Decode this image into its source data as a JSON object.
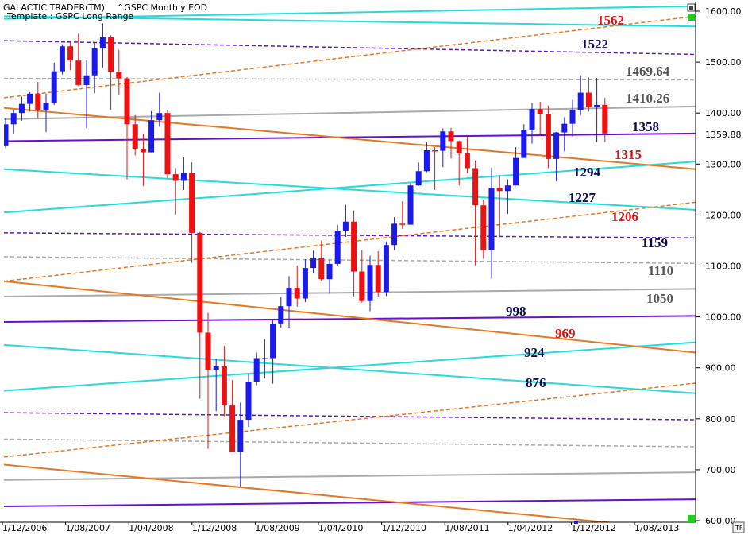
{
  "header": {
    "app_title": "GALACTIC TRADER(TM)",
    "symbol": "^GSPC Monthly EOD",
    "template": "Template : GSPC Long Range"
  },
  "colors": {
    "up_candle": "#1a1aee",
    "down_candle": "#ee1111",
    "cyan_line": "#22dddd",
    "purple_line": "#6a10cc",
    "orange_line": "#e87722",
    "gray_line": "#aaaaaa",
    "label_navy": "#0b0b55",
    "label_red": "#dd1111",
    "label_gray": "#555555",
    "green_marker": "#22cc22"
  },
  "chart_data": {
    "type": "candlestick",
    "title": "GSPC Long Range",
    "ylim": [
      600,
      1610
    ],
    "x_ticks": [
      "1/12/2006",
      "1/08/2007",
      "1/04/2008",
      "1/12/2008",
      "1/08/2009",
      "1/04/2010",
      "1/12/2010",
      "1/08/2011",
      "1/04/2012",
      "1/12/2012",
      "1/08/2013"
    ],
    "y_ticks": [
      "1600.00",
      "1500.00",
      "1400.00",
      "1300.00",
      "1200.00",
      "1100.00",
      "1000.00",
      "900.00",
      "800.00",
      "700.00",
      "600.00"
    ],
    "current_price_label": "1359.88",
    "current_price": 1359.88,
    "candles": [
      {
        "date": "2006-10",
        "o": 1335,
        "h": 1390,
        "l": 1332,
        "c": 1378
      },
      {
        "date": "2006-11",
        "o": 1378,
        "h": 1406,
        "l": 1360,
        "c": 1400
      },
      {
        "date": "2006-12",
        "o": 1400,
        "h": 1432,
        "l": 1385,
        "c": 1418
      },
      {
        "date": "2007-01",
        "o": 1418,
        "h": 1441,
        "l": 1403,
        "c": 1438
      },
      {
        "date": "2007-02",
        "o": 1438,
        "h": 1461,
        "l": 1389,
        "c": 1406
      },
      {
        "date": "2007-03",
        "o": 1406,
        "h": 1438,
        "l": 1363,
        "c": 1420
      },
      {
        "date": "2007-04",
        "o": 1420,
        "h": 1499,
        "l": 1416,
        "c": 1482
      },
      {
        "date": "2007-05",
        "o": 1482,
        "h": 1535,
        "l": 1476,
        "c": 1531
      },
      {
        "date": "2007-06",
        "o": 1531,
        "h": 1540,
        "l": 1484,
        "c": 1503
      },
      {
        "date": "2007-07",
        "o": 1503,
        "h": 1556,
        "l": 1453,
        "c": 1455
      },
      {
        "date": "2007-08",
        "o": 1455,
        "h": 1503,
        "l": 1370,
        "c": 1474
      },
      {
        "date": "2007-09",
        "o": 1474,
        "h": 1538,
        "l": 1439,
        "c": 1527
      },
      {
        "date": "2007-10",
        "o": 1527,
        "h": 1576,
        "l": 1489,
        "c": 1549
      },
      {
        "date": "2007-11",
        "o": 1549,
        "h": 1553,
        "l": 1406,
        "c": 1481
      },
      {
        "date": "2007-12",
        "o": 1481,
        "h": 1524,
        "l": 1435,
        "c": 1468
      },
      {
        "date": "2008-01",
        "o": 1468,
        "h": 1471,
        "l": 1270,
        "c": 1378
      },
      {
        "date": "2008-02",
        "o": 1378,
        "h": 1396,
        "l": 1317,
        "c": 1330
      },
      {
        "date": "2008-03",
        "o": 1330,
        "h": 1359,
        "l": 1257,
        "c": 1323
      },
      {
        "date": "2008-04",
        "o": 1323,
        "h": 1404,
        "l": 1323,
        "c": 1386
      },
      {
        "date": "2008-05",
        "o": 1386,
        "h": 1440,
        "l": 1373,
        "c": 1400
      },
      {
        "date": "2008-06",
        "o": 1400,
        "h": 1405,
        "l": 1272,
        "c": 1280
      },
      {
        "date": "2008-07",
        "o": 1280,
        "h": 1292,
        "l": 1201,
        "c": 1267
      },
      {
        "date": "2008-08",
        "o": 1267,
        "h": 1313,
        "l": 1249,
        "c": 1283
      },
      {
        "date": "2008-09",
        "o": 1283,
        "h": 1303,
        "l": 1106,
        "c": 1165
      },
      {
        "date": "2008-10",
        "o": 1165,
        "h": 1167,
        "l": 839,
        "c": 969
      },
      {
        "date": "2008-11",
        "o": 969,
        "h": 1008,
        "l": 741,
        "c": 896
      },
      {
        "date": "2008-12",
        "o": 896,
        "h": 918,
        "l": 815,
        "c": 903
      },
      {
        "date": "2009-01",
        "o": 903,
        "h": 943,
        "l": 805,
        "c": 826
      },
      {
        "date": "2009-02",
        "o": 826,
        "h": 876,
        "l": 735,
        "c": 735
      },
      {
        "date": "2009-03",
        "o": 735,
        "h": 832,
        "l": 667,
        "c": 798
      },
      {
        "date": "2009-04",
        "o": 798,
        "h": 888,
        "l": 784,
        "c": 873
      },
      {
        "date": "2009-05",
        "o": 873,
        "h": 930,
        "l": 866,
        "c": 919
      },
      {
        "date": "2009-06",
        "o": 919,
        "h": 956,
        "l": 879,
        "c": 919
      },
      {
        "date": "2009-07",
        "o": 919,
        "h": 993,
        "l": 869,
        "c": 987
      },
      {
        "date": "2009-08",
        "o": 987,
        "h": 1039,
        "l": 979,
        "c": 1021
      },
      {
        "date": "2009-09",
        "o": 1021,
        "h": 1080,
        "l": 979,
        "c": 1057
      },
      {
        "date": "2009-10",
        "o": 1057,
        "h": 1101,
        "l": 1020,
        "c": 1036
      },
      {
        "date": "2009-11",
        "o": 1036,
        "h": 1113,
        "l": 1029,
        "c": 1096
      },
      {
        "date": "2009-12",
        "o": 1096,
        "h": 1130,
        "l": 1085,
        "c": 1115
      },
      {
        "date": "2010-01",
        "o": 1115,
        "h": 1150,
        "l": 1071,
        "c": 1074
      },
      {
        "date": "2010-02",
        "o": 1074,
        "h": 1112,
        "l": 1045,
        "c": 1104
      },
      {
        "date": "2010-03",
        "o": 1104,
        "h": 1180,
        "l": 1101,
        "c": 1169
      },
      {
        "date": "2010-04",
        "o": 1169,
        "h": 1220,
        "l": 1157,
        "c": 1187
      },
      {
        "date": "2010-05",
        "o": 1187,
        "h": 1209,
        "l": 1040,
        "c": 1089
      },
      {
        "date": "2010-06",
        "o": 1089,
        "h": 1131,
        "l": 1028,
        "c": 1031
      },
      {
        "date": "2010-07",
        "o": 1031,
        "h": 1120,
        "l": 1011,
        "c": 1102
      },
      {
        "date": "2010-08",
        "o": 1102,
        "h": 1129,
        "l": 1040,
        "c": 1049
      },
      {
        "date": "2010-09",
        "o": 1049,
        "h": 1148,
        "l": 1041,
        "c": 1141
      },
      {
        "date": "2010-10",
        "o": 1141,
        "h": 1196,
        "l": 1131,
        "c": 1183
      },
      {
        "date": "2010-11",
        "o": 1183,
        "h": 1227,
        "l": 1173,
        "c": 1181
      },
      {
        "date": "2010-12",
        "o": 1181,
        "h": 1263,
        "l": 1181,
        "c": 1258
      },
      {
        "date": "2011-01",
        "o": 1258,
        "h": 1303,
        "l": 1257,
        "c": 1286
      },
      {
        "date": "2011-02",
        "o": 1286,
        "h": 1344,
        "l": 1284,
        "c": 1327
      },
      {
        "date": "2011-03",
        "o": 1327,
        "h": 1333,
        "l": 1249,
        "c": 1326
      },
      {
        "date": "2011-04",
        "o": 1326,
        "h": 1370,
        "l": 1294,
        "c": 1364
      },
      {
        "date": "2011-05",
        "o": 1364,
        "h": 1371,
        "l": 1311,
        "c": 1345
      },
      {
        "date": "2011-06",
        "o": 1345,
        "h": 1346,
        "l": 1258,
        "c": 1321
      },
      {
        "date": "2011-07",
        "o": 1321,
        "h": 1356,
        "l": 1282,
        "c": 1292
      },
      {
        "date": "2011-08",
        "o": 1292,
        "h": 1307,
        "l": 1101,
        "c": 1219
      },
      {
        "date": "2011-09",
        "o": 1219,
        "h": 1230,
        "l": 1114,
        "c": 1131
      },
      {
        "date": "2011-10",
        "o": 1131,
        "h": 1293,
        "l": 1075,
        "c": 1253
      },
      {
        "date": "2011-11",
        "o": 1253,
        "h": 1278,
        "l": 1158,
        "c": 1247
      },
      {
        "date": "2011-12",
        "o": 1247,
        "h": 1270,
        "l": 1202,
        "c": 1258
      },
      {
        "date": "2012-01",
        "o": 1258,
        "h": 1333,
        "l": 1258,
        "c": 1312
      },
      {
        "date": "2012-02",
        "o": 1312,
        "h": 1378,
        "l": 1312,
        "c": 1366
      },
      {
        "date": "2012-03",
        "o": 1366,
        "h": 1420,
        "l": 1340,
        "c": 1408
      },
      {
        "date": "2012-04",
        "o": 1408,
        "h": 1422,
        "l": 1357,
        "c": 1398
      },
      {
        "date": "2012-05",
        "o": 1398,
        "h": 1415,
        "l": 1292,
        "c": 1310
      },
      {
        "date": "2012-06",
        "o": 1310,
        "h": 1363,
        "l": 1266,
        "c": 1362
      },
      {
        "date": "2012-07",
        "o": 1362,
        "h": 1392,
        "l": 1325,
        "c": 1379
      },
      {
        "date": "2012-08",
        "o": 1379,
        "h": 1426,
        "l": 1354,
        "c": 1406
      },
      {
        "date": "2012-09",
        "o": 1406,
        "h": 1474,
        "l": 1396,
        "c": 1440
      },
      {
        "date": "2012-10",
        "o": 1440,
        "h": 1470,
        "l": 1403,
        "c": 1412
      },
      {
        "date": "2012-11",
        "o": 1412,
        "h": 1469,
        "l": 1343,
        "c": 1416
      },
      {
        "date": "2012-12",
        "o": 1416,
        "h": 1430,
        "l": 1343,
        "c": 1360
      }
    ],
    "level_labels": [
      {
        "text": "1562",
        "value": 1562,
        "color": "red"
      },
      {
        "text": "1522",
        "value": 1522,
        "color": "navy"
      },
      {
        "text": "1469.64",
        "value": 1469.64,
        "color": "gray"
      },
      {
        "text": "1410.26",
        "value": 1410.26,
        "color": "gray"
      },
      {
        "text": "1358",
        "value": 1358,
        "color": "navy"
      },
      {
        "text": "1315",
        "value": 1315,
        "color": "red"
      },
      {
        "text": "1294",
        "value": 1294,
        "color": "navy"
      },
      {
        "text": "1227",
        "value": 1227,
        "color": "navy"
      },
      {
        "text": "1206",
        "value": 1206,
        "color": "red"
      },
      {
        "text": "1159",
        "value": 1159,
        "color": "navy"
      },
      {
        "text": "1110",
        "value": 1110,
        "color": "gray"
      },
      {
        "text": "1050",
        "value": 1050,
        "color": "gray"
      },
      {
        "text": "998",
        "value": 998,
        "color": "navy"
      },
      {
        "text": "969",
        "value": 969,
        "color": "red"
      },
      {
        "text": "924",
        "value": 924,
        "color": "navy"
      },
      {
        "text": "876",
        "value": 876,
        "color": "navy"
      }
    ],
    "lines": [
      {
        "kind": "cyan",
        "style": "solid",
        "y_start": 1590,
        "y_end": 1570
      },
      {
        "kind": "cyan",
        "style": "solid",
        "y_start": 1585,
        "y_end": 1610
      },
      {
        "kind": "cyan",
        "style": "solid",
        "y_start": 1290,
        "y_end": 1210
      },
      {
        "kind": "cyan",
        "style": "solid",
        "y_start": 1205,
        "y_end": 1305
      },
      {
        "kind": "cyan",
        "style": "solid",
        "y_start": 945,
        "y_end": 850
      },
      {
        "kind": "cyan",
        "style": "solid",
        "y_start": 855,
        "y_end": 950
      },
      {
        "kind": "purple",
        "style": "dashed",
        "y_start": 1542,
        "y_end": 1515
      },
      {
        "kind": "purple",
        "style": "solid",
        "y_start": 1345,
        "y_end": 1360
      },
      {
        "kind": "purple",
        "style": "dashed",
        "y_start": 1165,
        "y_end": 1155
      },
      {
        "kind": "purple",
        "style": "solid",
        "y_start": 990,
        "y_end": 1002
      },
      {
        "kind": "purple",
        "style": "dashed",
        "y_start": 812,
        "y_end": 798
      },
      {
        "kind": "purple",
        "style": "solid",
        "y_start": 628,
        "y_end": 642
      },
      {
        "kind": "gray",
        "style": "dashed",
        "y_start": 1468,
        "y_end": 1465
      },
      {
        "kind": "gray",
        "style": "solid",
        "y_start": 1388,
        "y_end": 1413
      },
      {
        "kind": "gray",
        "style": "dashed",
        "y_start": 1118,
        "y_end": 1105
      },
      {
        "kind": "gray",
        "style": "solid",
        "y_start": 1040,
        "y_end": 1055
      },
      {
        "kind": "gray",
        "style": "dashed",
        "y_start": 760,
        "y_end": 745
      },
      {
        "kind": "gray",
        "style": "solid",
        "y_start": 680,
        "y_end": 695
      },
      {
        "kind": "orange",
        "style": "dashed",
        "y_start": 1430,
        "y_end": 1590
      },
      {
        "kind": "orange",
        "style": "solid",
        "y_start": 1410,
        "y_end": 1290
      },
      {
        "kind": "orange",
        "style": "dashed",
        "y_start": 1070,
        "y_end": 1225
      },
      {
        "kind": "orange",
        "style": "solid",
        "y_start": 1070,
        "y_end": 930
      },
      {
        "kind": "orange",
        "style": "dashed",
        "y_start": 725,
        "y_end": 870
      },
      {
        "kind": "orange",
        "style": "solid",
        "y_start": 710,
        "y_end": 580
      }
    ]
  }
}
